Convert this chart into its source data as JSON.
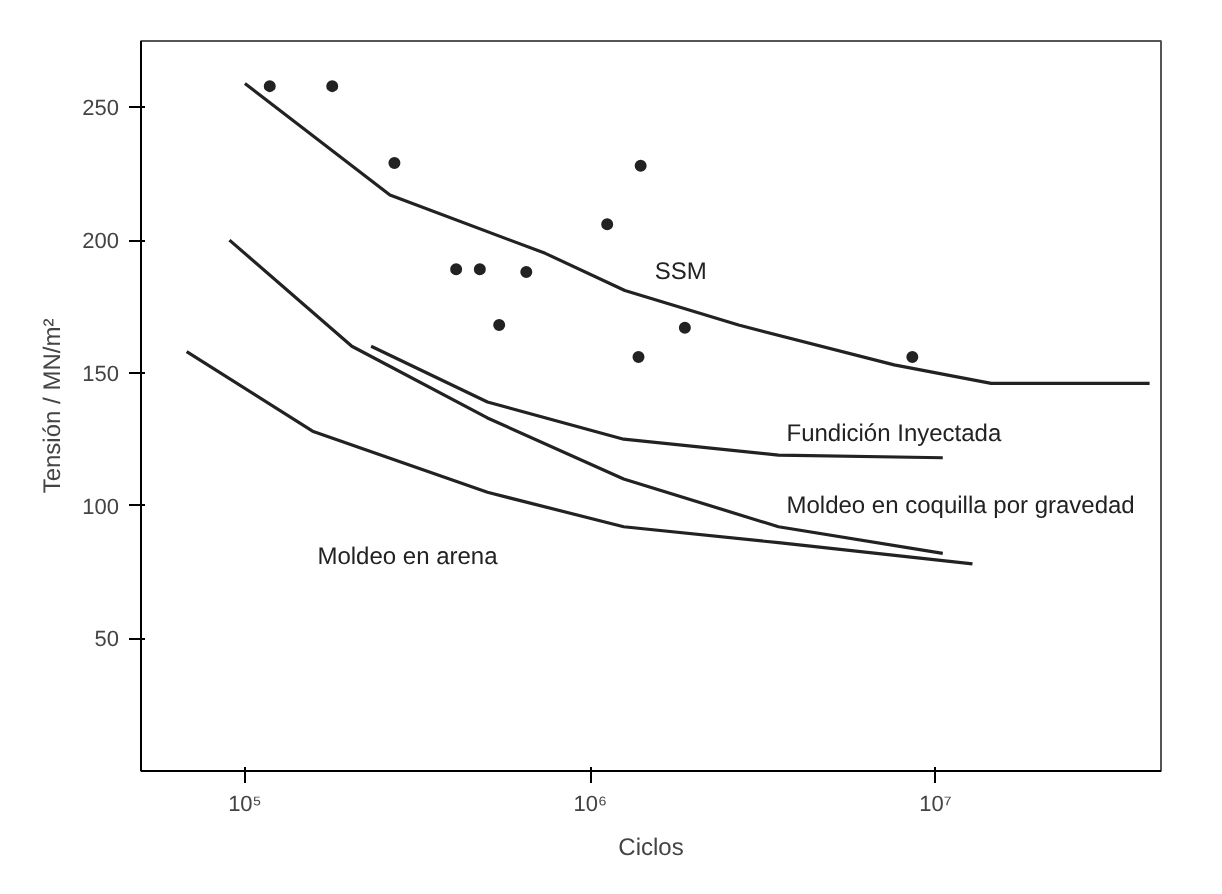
{
  "chart_data": {
    "type": "line",
    "xlabel": "Ciclos",
    "ylabel": "Tensión / MN/m²",
    "log": "x",
    "grid": false,
    "marker": "none",
    "line_style": "solid",
    "xlim": [
      50000,
      45000000
    ],
    "ylim": [
      0,
      275
    ],
    "xticks": [
      {
        "value": 100000,
        "label": "10⁵"
      },
      {
        "value": 1000000,
        "label": "10⁶"
      },
      {
        "value": 10000000,
        "label": "10⁷"
      }
    ],
    "yticks": [
      50,
      100,
      150,
      200,
      250
    ],
    "series": [
      {
        "name": "SSM",
        "color": "#222222",
        "x": [
          100000,
          263000,
          741000,
          1260000,
          2690000,
          7590000,
          14500000,
          41700000
        ],
        "values": [
          259,
          217,
          195,
          181,
          168,
          153,
          146,
          146
        ]
      },
      {
        "name": "Fundición Inyectada",
        "color": "#222222",
        "x": [
          232000,
          504000,
          1250000,
          3510000,
          10500000
        ],
        "values": [
          160,
          139,
          125,
          119,
          118
        ]
      },
      {
        "name": "Moldeo en coquilla por gravedad",
        "color": "#222222",
        "x": [
          90200,
          204000,
          504000,
          1250000,
          3510000,
          10500000
        ],
        "values": [
          200,
          160,
          133,
          110,
          92,
          82
        ]
      },
      {
        "name": "Moldeo en arena",
        "color": "#222222",
        "x": [
          67800,
          157000,
          504000,
          1250000,
          3510000,
          12800000
        ],
        "values": [
          158,
          128,
          105,
          92,
          86,
          78
        ]
      },
      {
        "type": "scatter",
        "marker": "circle",
        "color": "#222222",
        "x": [
          118000,
          179000,
          271000,
          409000,
          479000,
          545000,
          653000,
          1120000,
          1400000,
          1380000,
          1880000,
          8570000
        ],
        "values": [
          258,
          258,
          229,
          189,
          189,
          168,
          188,
          206,
          228,
          156,
          167,
          156
        ]
      }
    ]
  }
}
